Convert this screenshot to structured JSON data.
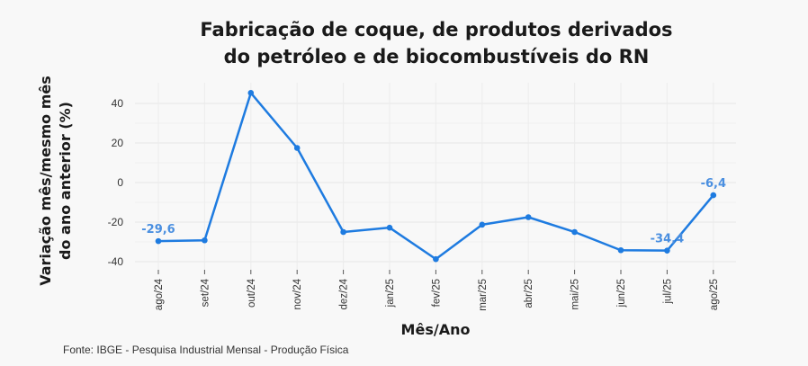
{
  "chart_data": {
    "type": "line",
    "title": [
      "Fabricação de coque, de produtos derivados",
      "do petróleo e de biocombustíveis do RN"
    ],
    "xlabel": "Mês/Ano",
    "ylabel": [
      "Variação mês/mesmo mês",
      "do ano anterior (%)"
    ],
    "categories": [
      "ago/24",
      "set/24",
      "out/24",
      "nov/24",
      "dez/24",
      "jan/25",
      "fev/25",
      "mar/25",
      "abr/25",
      "mai/25",
      "jun/25",
      "jul/25",
      "ago/25"
    ],
    "series": [
      {
        "values": [
          -29.6,
          -29.2,
          45.3,
          17.5,
          -25.0,
          -22.8,
          -38.7,
          -21.3,
          -17.5,
          -25.0,
          -34.2,
          -34.4,
          -6.4
        ]
      }
    ],
    "data_labels": [
      {
        "index": 0,
        "text": "-29,6"
      },
      {
        "index": 11,
        "text": "-34,4"
      },
      {
        "index": 12,
        "text": "-6,4"
      }
    ],
    "yticks": [
      40,
      20,
      0,
      -20,
      -40
    ],
    "ylim": [
      -44,
      50
    ],
    "grid": true,
    "line_color": "#1e7be0",
    "label_color": "#4a8fe0"
  },
  "source": "Fonte: IBGE - Pesquisa Industrial Mensal - Produção Física"
}
